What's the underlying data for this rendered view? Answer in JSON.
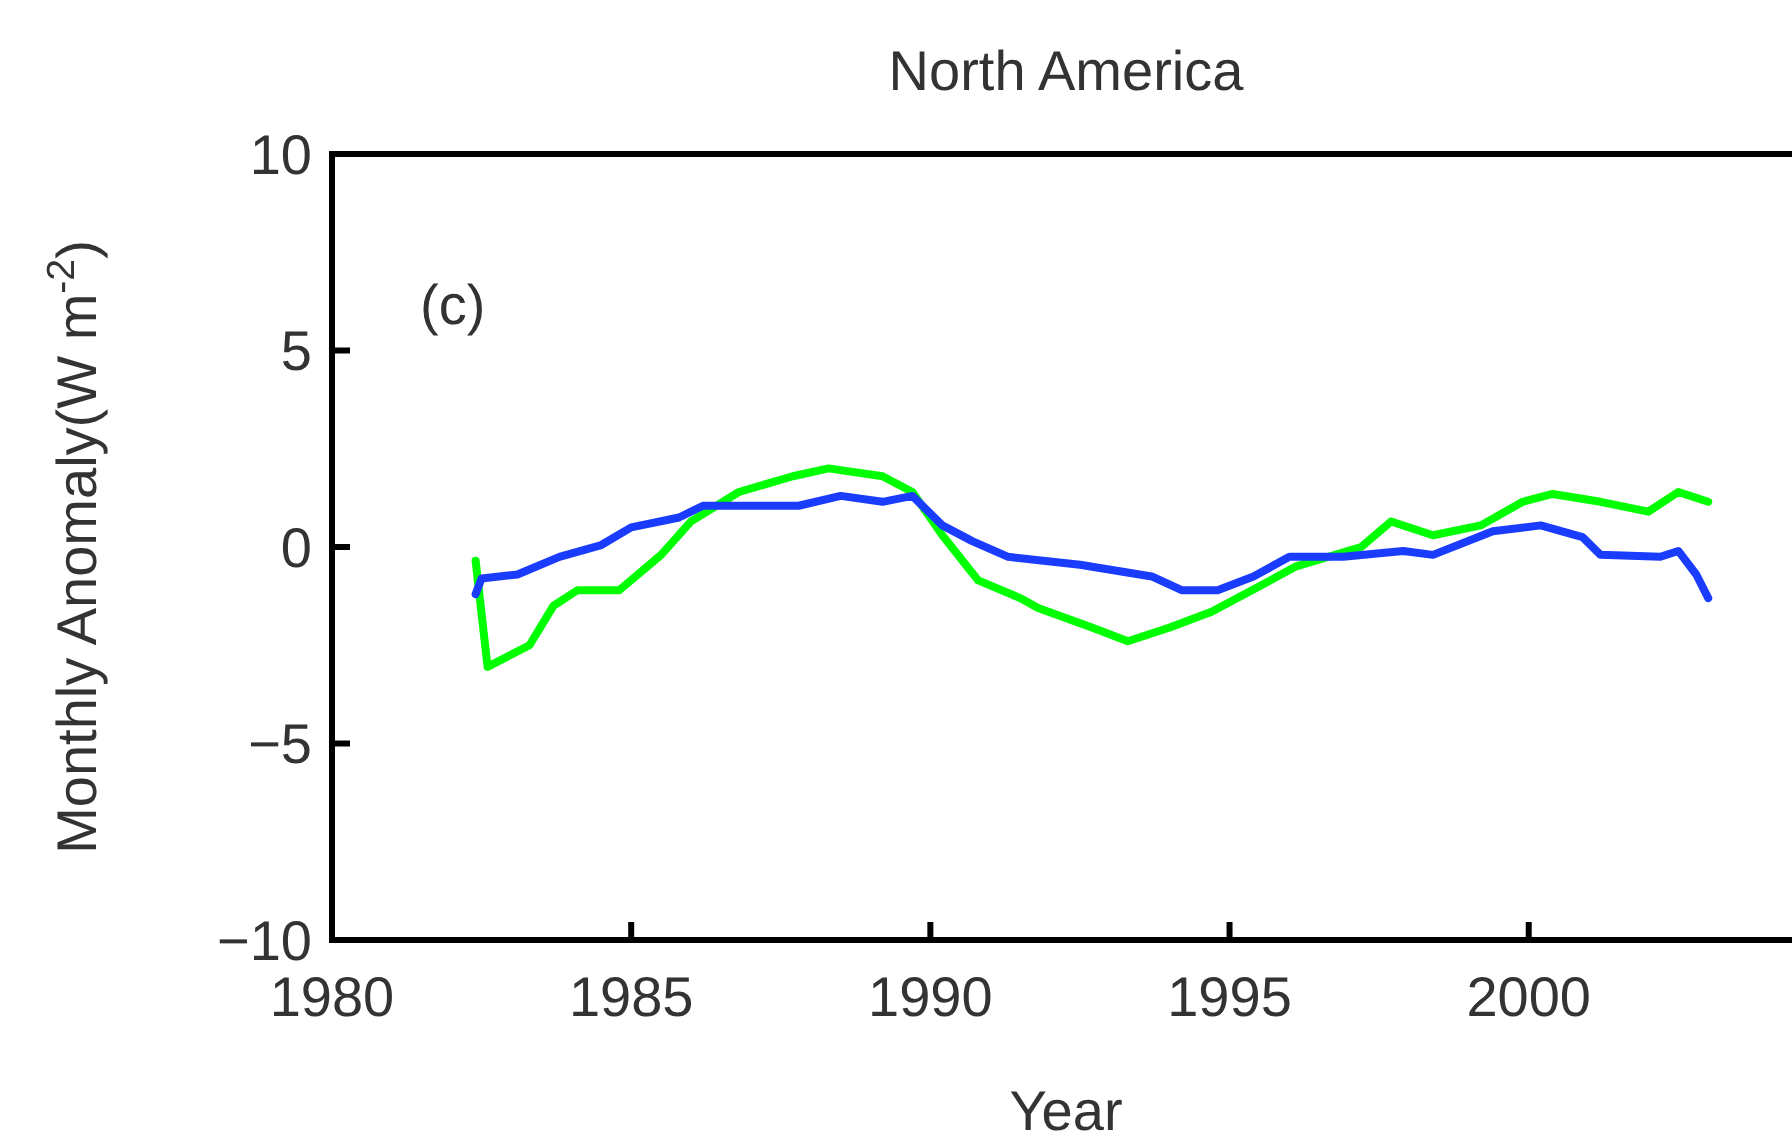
{
  "chart_data": {
    "type": "line",
    "title": "North America",
    "xlabel": "Year",
    "ylabel": "Monthly Anomaly(W m$^{-2}$)",
    "annotations": [
      "(c)"
    ],
    "xlim": [
      1980,
      2004.4
    ],
    "xticks": [
      1980,
      1985,
      1990,
      1995,
      2000
    ],
    "ylim": [
      -10,
      10
    ],
    "yticks": [
      -10,
      -5,
      0,
      5,
      10
    ],
    "grid": false,
    "line_style": "solid",
    "series": [
      {
        "color": "#00ff00",
        "x": [
          1982.4,
          1982.6,
          1983.3,
          1983.7,
          1984.1,
          1984.8,
          1985.5,
          1986.0,
          1986.8,
          1987.7,
          1988.3,
          1989.2,
          1989.7,
          1990.2,
          1990.8,
          1991.5,
          1991.8,
          1992.7,
          1993.3,
          1994.0,
          1994.7,
          1995.5,
          1996.1,
          1997.2,
          1997.7,
          1998.4,
          1999.2,
          1999.9,
          2000.4,
          2001.2,
          2002.0,
          2002.5,
          2003.0
        ],
        "values": [
          -0.35,
          -3.05,
          -2.5,
          -1.5,
          -1.1,
          -1.1,
          -0.2,
          0.65,
          1.4,
          1.8,
          2.0,
          1.8,
          1.4,
          0.3,
          -0.85,
          -1.3,
          -1.55,
          -2.05,
          -2.4,
          -2.05,
          -1.65,
          -1.0,
          -0.5,
          0,
          0.65,
          0.3,
          0.55,
          1.15,
          1.35,
          1.15,
          0.9,
          1.4,
          1.15
        ]
      },
      {
        "color": "#1a3cff",
        "x": [
          1982.4,
          1982.5,
          1983.1,
          1983.8,
          1984.5,
          1985.0,
          1985.8,
          1986.2,
          1987.8,
          1988.5,
          1989.2,
          1989.7,
          1990.2,
          1990.7,
          1991.3,
          1992.5,
          1993.7,
          1994.2,
          1994.8,
          1995.4,
          1996.0,
          1996.9,
          1997.9,
          1998.4,
          1999.4,
          2000.2,
          2000.9,
          2001.2,
          2002.2,
          2002.5,
          2002.8,
          2003.0
        ],
        "values": [
          -1.2,
          -0.8,
          -0.7,
          -0.25,
          0.05,
          0.5,
          0.75,
          1.05,
          1.05,
          1.3,
          1.15,
          1.3,
          0.55,
          0.15,
          -0.25,
          -0.45,
          -0.75,
          -1.1,
          -1.1,
          -0.75,
          -0.25,
          -0.25,
          -0.1,
          -0.2,
          0.4,
          0.55,
          0.25,
          -0.2,
          -0.25,
          -0.1,
          -0.7,
          -1.3
        ]
      }
    ]
  }
}
